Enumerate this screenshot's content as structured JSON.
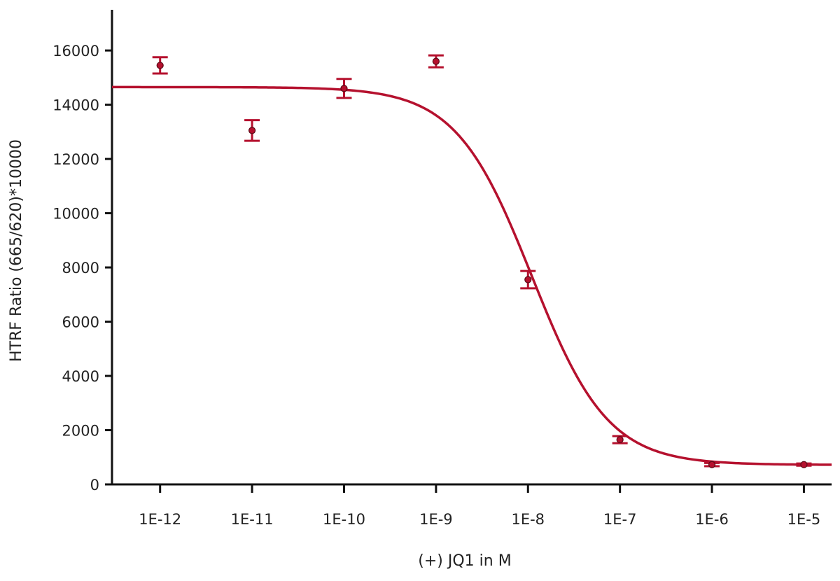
{
  "chart_data": {
    "type": "scatter",
    "xlabel": "(+) JQ1 in M",
    "ylabel": "HTRF Ratio (665/620)*10000",
    "x_scale": "log",
    "xlim": [
      3e-13,
      2e-05
    ],
    "ylim": [
      0,
      17500
    ],
    "x_ticks": [
      1e-12,
      1e-11,
      1e-10,
      1e-09,
      1e-08,
      1e-07,
      1e-06,
      1e-05
    ],
    "x_tick_labels": [
      "1E-12",
      "1E-11",
      "1E-10",
      "1E-9",
      "1E-8",
      "1E-7",
      "1E-6",
      "1E-5"
    ],
    "y_ticks": [
      0,
      2000,
      4000,
      6000,
      8000,
      10000,
      12000,
      14000,
      16000
    ],
    "y_tick_labels": [
      "0",
      "2000",
      "4000",
      "6000",
      "8000",
      "10000",
      "12000",
      "14000",
      "16000"
    ],
    "grid": false,
    "color": "#b5112e",
    "series": [
      {
        "x": [
          1e-12,
          1e-11,
          1e-10,
          1e-09,
          1e-08,
          1e-07,
          1e-06,
          1e-05
        ],
        "y": [
          15450,
          13050,
          14600,
          15600,
          7550,
          1650,
          730,
          730
        ],
        "y_err": [
          300,
          380,
          350,
          220,
          320,
          130,
          60,
          40
        ]
      }
    ],
    "fit_curve": {
      "type": "sigmoidal dose-response",
      "top": 14650,
      "bottom": 720,
      "ec50": 1.1e-08,
      "hill_slope": 1.05
    }
  }
}
